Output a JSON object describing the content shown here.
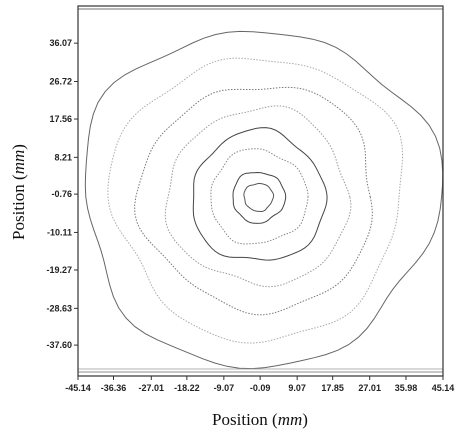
{
  "chart_data": {
    "type": "contour",
    "xlabel": "Position (mm)",
    "ylabel": "Position (mm)",
    "xlabel_parts": [
      "Position (",
      "mm",
      ")"
    ],
    "ylabel_parts": [
      "Position (",
      "mm",
      ")"
    ],
    "x_ticks": [
      "-45.14",
      "-36.36",
      "-27.01",
      "-18.22",
      "-9.07",
      "-0.09",
      "9.07",
      "17.85",
      "27.01",
      "35.98",
      "45.14"
    ],
    "y_ticks": [
      "36.07",
      "26.72",
      "17.56",
      "8.21",
      "-0.76",
      "-10.11",
      "-19.27",
      "-28.63",
      "-37.60"
    ],
    "x_tick_values": [
      -45.14,
      -36.36,
      -27.01,
      -18.22,
      -9.07,
      -0.09,
      9.07,
      17.85,
      27.01,
      35.98,
      45.14
    ],
    "y_tick_values": [
      36.07,
      26.72,
      17.56,
      8.21,
      -0.76,
      -10.11,
      -19.27,
      -28.63,
      -37.6
    ],
    "xlim": [
      -45.14,
      45.14
    ],
    "ylim": [
      -45.14,
      45.14
    ],
    "center": [
      -0.5,
      -1.5
    ],
    "grid": false,
    "contours": [
      {
        "radius_x": 3.6,
        "radius_y": 3.4,
        "color": "#555555",
        "dash": "solid"
      },
      {
        "radius_x": 6.5,
        "radius_y": 6.2,
        "color": "#444444",
        "dash": "solid"
      },
      {
        "radius_x": 12.0,
        "radius_y": 11.5,
        "color": "#888888",
        "dash": "dotted"
      },
      {
        "radius_x": 16.5,
        "radius_y": 16.0,
        "color": "#444444",
        "dash": "solid"
      },
      {
        "radius_x": 22.5,
        "radius_y": 21.5,
        "color": "#999999",
        "dash": "dotted"
      },
      {
        "radius_x": 29.0,
        "radius_y": 27.5,
        "color": "#777777",
        "dash": "dotted"
      },
      {
        "radius_x": 36.0,
        "radius_y": 34.5,
        "color": "#aaaaaa",
        "dash": "dotted"
      },
      {
        "radius_x": 44.0,
        "radius_y": 41.0,
        "color": "#666666",
        "dash": "solid"
      }
    ]
  }
}
